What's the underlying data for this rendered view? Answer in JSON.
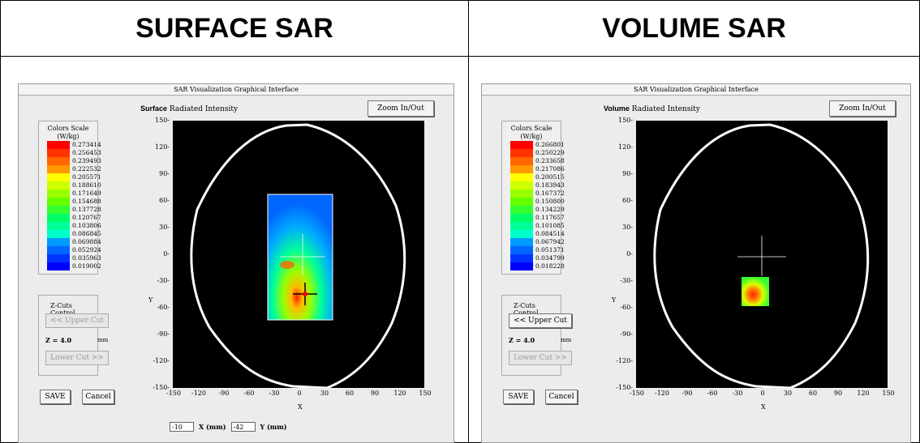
{
  "headers": {
    "left": "SURFACE SAR",
    "right": "VOLUME SAR"
  },
  "window_title": "SAR Visualization Graphical Interface",
  "zoom_label": "Zoom In/Out",
  "subtitle_suffix": "Radiated Intensity",
  "colors_scale_title": "Colors Scale",
  "colors_scale_unit": "(W/kg)",
  "zcuts_title": "Z-Cuts Control",
  "upper_cut": "<< Upper Cut",
  "lower_cut": "Lower Cut >>",
  "z_label": "Z = 4.0",
  "z_unit": "mm",
  "save": "SAVE",
  "cancel": "Cancel",
  "axis": {
    "x": "X",
    "y": "Y",
    "y_ticks": [
      "150",
      "120",
      "90",
      "60",
      "30",
      "0",
      "-30",
      "-60",
      "-90",
      "-120",
      "-150"
    ],
    "x_ticks": [
      "-150",
      "-120",
      "-90",
      "-60",
      "-30",
      "0",
      "30",
      "60",
      "90",
      "120",
      "150"
    ]
  },
  "scale_colors": [
    "#ff0000",
    "#ff3300",
    "#ff6600",
    "#ff9900",
    "#ffcc00",
    "#ffff00",
    "#ccff00",
    "#99ff00",
    "#66ff00",
    "#33ff33",
    "#00ff66",
    "#00ff99",
    "#00ffcc",
    "#00ccff",
    "#0099ff",
    "#0066ff",
    "#0033ff",
    "#0000ff"
  ],
  "surface": {
    "label_bold": "Surface",
    "scale": [
      "0.273414",
      "0.256453",
      "0.239493",
      "0.222532",
      "0.205571",
      "0.188610",
      "0.171649",
      "0.154688",
      "0.137728",
      "0.120767",
      "0.103806",
      "0.086845",
      "0.069884",
      "0.052924",
      "0.035963",
      "0.019002"
    ],
    "coord_x_value": "-10",
    "coord_x_label": "X (mm)",
    "coord_y_value": "-42",
    "coord_y_label": "Y (mm)"
  },
  "volume": {
    "label_bold": "Volume",
    "scale": [
      "0.266801",
      "0.250229",
      "0.233658",
      "0.217086",
      "0.200515",
      "0.183943",
      "0.167372",
      "0.150800",
      "0.134229",
      "0.117657",
      "0.101085",
      "0.084514",
      "0.067942",
      "0.051371",
      "0.034799",
      "0.018228"
    ]
  }
}
